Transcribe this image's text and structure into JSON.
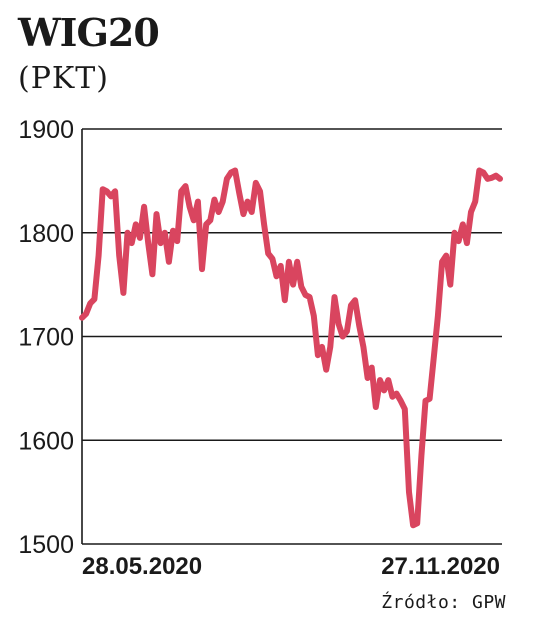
{
  "header": {
    "title": "WIG20",
    "subtitle": "(PKT)"
  },
  "footer": {
    "source": "Źródło: GPW"
  },
  "chart_data": {
    "type": "line",
    "title": "WIG20",
    "subtitle": "(PKT)",
    "xlabel": "",
    "ylabel": "",
    "ylim": [
      1500,
      1900
    ],
    "yticks": [
      1500,
      1600,
      1700,
      1800,
      1900
    ],
    "xtick_labels": [
      {
        "label": "28.05.2020",
        "at_index": 4
      },
      {
        "label": "27.11.2020",
        "at_index": 129
      }
    ],
    "grid": "horizontal",
    "line_color": "#d9455f",
    "series": [
      {
        "values": [
          1718,
          1722,
          1732,
          1736,
          1778,
          1842,
          1840,
          1835,
          1840,
          1778,
          1742,
          1800,
          1790,
          1808,
          1795,
          1825,
          1790,
          1760,
          1818,
          1790,
          1800,
          1772,
          1802,
          1792,
          1840,
          1845,
          1825,
          1812,
          1830,
          1765,
          1808,
          1812,
          1832,
          1820,
          1830,
          1852,
          1858,
          1860,
          1838,
          1818,
          1830,
          1820,
          1848,
          1840,
          1808,
          1780,
          1775,
          1758,
          1768,
          1735,
          1772,
          1750,
          1772,
          1748,
          1740,
          1738,
          1720,
          1682,
          1690,
          1668,
          1690,
          1738,
          1712,
          1700,
          1705,
          1730,
          1735,
          1710,
          1690,
          1660,
          1670,
          1632,
          1658,
          1648,
          1658,
          1642,
          1645,
          1638,
          1630,
          1550,
          1518,
          1520,
          1585,
          1638,
          1640,
          1680,
          1720,
          1772,
          1778,
          1750,
          1800,
          1792,
          1808,
          1790,
          1820,
          1830,
          1860,
          1858,
          1852,
          1853,
          1855,
          1852
        ]
      }
    ]
  }
}
